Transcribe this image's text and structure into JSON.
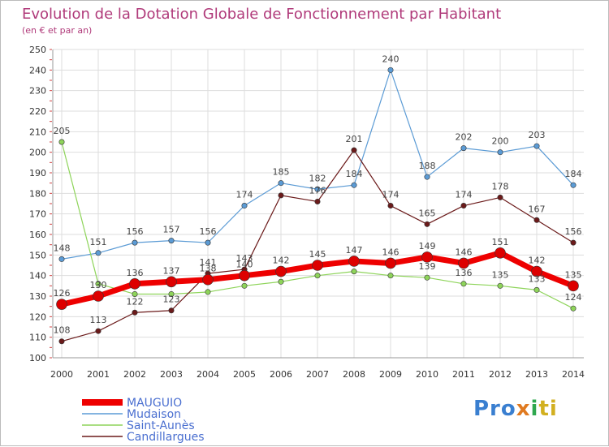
{
  "chart_data": {
    "type": "line",
    "title": "Evolution de la Dotation Globale de Fonctionnement par Habitant",
    "subtitle": "(en € et par an)",
    "xlabel": "",
    "ylabel": "",
    "ylim": [
      100,
      250
    ],
    "yticks": [
      100,
      110,
      120,
      130,
      140,
      150,
      160,
      170,
      180,
      190,
      200,
      210,
      220,
      230,
      240,
      250
    ],
    "categories": [
      "2000",
      "2001",
      "2002",
      "2003",
      "2004",
      "2005",
      "2006",
      "2007",
      "2008",
      "2009",
      "2010",
      "2011",
      "2012",
      "2013",
      "2014"
    ],
    "grid": true,
    "legend_position": "bottom-left",
    "series": [
      {
        "name": "Mudaison",
        "color": "#5b9bd5",
        "values": [
          148,
          151,
          156,
          157,
          156,
          174,
          185,
          182,
          184,
          240,
          188,
          202,
          200,
          203,
          184
        ]
      },
      {
        "name": "Saint-Aunès",
        "color": "#8ed45a",
        "values": [
          205,
          136,
          131,
          131,
          132,
          135,
          137,
          140,
          142,
          140,
          139,
          136,
          135,
          133,
          124
        ]
      },
      {
        "name": "Candillargues",
        "color": "#6b1a1a",
        "values": [
          108,
          113,
          122,
          123,
          141,
          143,
          179,
          176,
          201,
          174,
          165,
          174,
          178,
          167,
          156
        ]
      },
      {
        "name": "MAUGUIO",
        "color": "#ee0000",
        "values": [
          126,
          130,
          136,
          137,
          138,
          140,
          142,
          145,
          147,
          146,
          149,
          146,
          151,
          142,
          135
        ]
      }
    ],
    "legend": [
      "MAUGUIO",
      "Mudaison",
      "Saint-Aunès",
      "Candillargues"
    ],
    "data_labels": {
      "Mudaison": [
        "148",
        "151",
        "156",
        "157",
        "156",
        "174",
        "185",
        "182",
        "184",
        "240",
        "188",
        "202",
        "200",
        "203",
        "184"
      ],
      "Saint-Aunès": [
        "205",
        "",
        "",
        "",
        "",
        "",
        "",
        "",
        "",
        "",
        "139",
        "136",
        "135",
        "133",
        "124"
      ],
      "Candillargues": [
        "108",
        "113",
        "122",
        "123",
        "141",
        "143",
        "",
        "176",
        "201",
        "174",
        "165",
        "174",
        "178",
        "167",
        "156"
      ],
      "MAUGUIO": [
        "126",
        "130",
        "136",
        "137",
        "138",
        "140",
        "142",
        "145",
        "147",
        "146",
        "149",
        "146",
        "151",
        "142",
        "135"
      ]
    }
  },
  "branding": {
    "logo_parts": [
      "Pro",
      "x",
      "i",
      "ti"
    ]
  }
}
